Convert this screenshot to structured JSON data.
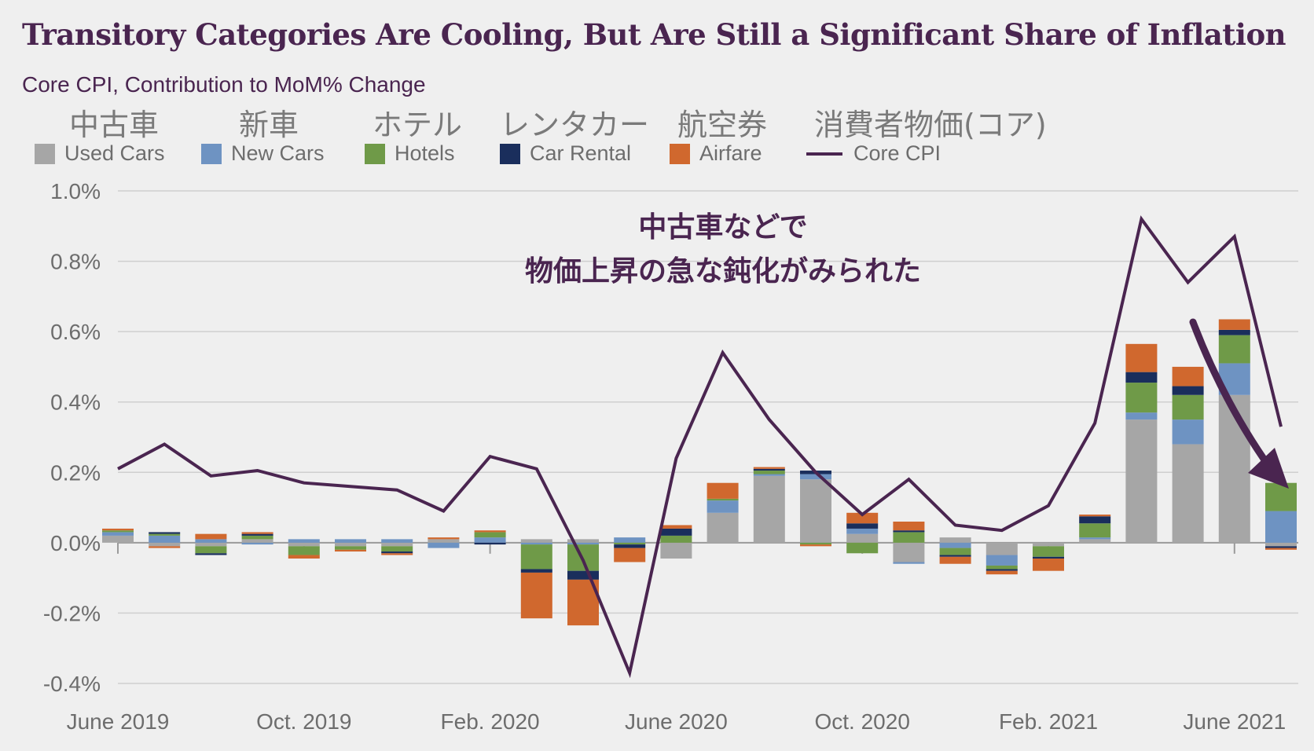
{
  "chart_data": {
    "type": "bar",
    "title": "Transitory Categories Are Cooling, But Are Still a Significant Share of Inflation",
    "subtitle": "Core CPI, Contribution to MoM% Change",
    "stacked": true,
    "ylim": [
      -0.4,
      1.0
    ],
    "y_ticks": [
      "1.0%",
      "0.8%",
      "0.6%",
      "0.4%",
      "0.2%",
      "0.0%",
      "-0.2%",
      "-0.4%"
    ],
    "y_tick_values": [
      1.0,
      0.8,
      0.6,
      0.4,
      0.2,
      0.0,
      -0.2,
      -0.4
    ],
    "x_tick_labels": [
      "June 2019",
      "Oct. 2019",
      "Feb. 2020",
      "June 2020",
      "Oct. 2020",
      "Feb. 2021",
      "June 2021"
    ],
    "x_tick_indices": [
      0,
      4,
      8,
      12,
      16,
      20,
      24
    ],
    "categories": [
      "2019-06",
      "2019-07",
      "2019-08",
      "2019-09",
      "2019-10",
      "2019-11",
      "2019-12",
      "2020-01",
      "2020-02",
      "2020-03",
      "2020-04",
      "2020-05",
      "2020-06",
      "2020-07",
      "2020-08",
      "2020-09",
      "2020-10",
      "2020-11",
      "2020-12",
      "2021-01",
      "2021-02",
      "2021-03",
      "2021-04",
      "2021-05",
      "2021-06",
      "2021-07"
    ],
    "series": [
      {
        "name": "Used Cars",
        "color": "#a6a6a6",
        "values": [
          0.02,
          -0.01,
          -0.01,
          0.01,
          -0.01,
          -0.01,
          -0.01,
          0.01,
          0.0,
          0.01,
          0.01,
          0.0,
          -0.045,
          0.085,
          0.19,
          0.18,
          0.025,
          -0.055,
          0.015,
          -0.035,
          -0.01,
          0.01,
          0.35,
          0.28,
          0.42,
          -0.01
        ]
      },
      {
        "name": "New Cars",
        "color": "#6e93c2",
        "values": [
          0.01,
          0.02,
          0.01,
          -0.005,
          0.01,
          0.01,
          0.01,
          -0.015,
          0.015,
          -0.005,
          -0.005,
          0.015,
          0.0,
          0.035,
          0.005,
          0.015,
          0.015,
          -0.005,
          -0.015,
          -0.03,
          0.0,
          0.005,
          0.02,
          0.07,
          0.09,
          0.09
        ]
      },
      {
        "name": "Hotels",
        "color": "#6f9a48",
        "values": [
          0.005,
          0.005,
          -0.02,
          0.01,
          -0.025,
          -0.01,
          -0.015,
          0.0,
          0.015,
          -0.07,
          -0.075,
          -0.005,
          0.02,
          0.005,
          0.01,
          -0.005,
          -0.03,
          0.03,
          -0.02,
          -0.01,
          -0.03,
          0.04,
          0.085,
          0.07,
          0.08,
          0.08
        ]
      },
      {
        "name": "Car Rental",
        "color": "#1a2e5c",
        "values": [
          0.0,
          0.005,
          -0.005,
          0.005,
          0.0,
          0.0,
          -0.005,
          0.0,
          -0.005,
          -0.01,
          -0.025,
          -0.01,
          0.02,
          0.0,
          0.005,
          0.01,
          0.015,
          0.005,
          -0.005,
          -0.005,
          -0.005,
          0.02,
          0.03,
          0.025,
          0.015,
          -0.005
        ]
      },
      {
        "name": "Airfare",
        "color": "#d0682e",
        "values": [
          0.005,
          -0.005,
          0.015,
          0.005,
          -0.01,
          -0.005,
          -0.005,
          0.005,
          0.005,
          -0.13,
          -0.13,
          -0.04,
          0.01,
          0.045,
          0.005,
          -0.005,
          0.03,
          0.025,
          -0.02,
          -0.01,
          -0.035,
          0.005,
          0.08,
          0.055,
          0.03,
          -0.005
        ]
      }
    ],
    "line_series": {
      "name": "Core CPI",
      "color": "#4a2550",
      "values": [
        0.21,
        0.28,
        0.19,
        0.205,
        0.17,
        0.16,
        0.15,
        0.09,
        0.245,
        0.21,
        -0.05,
        -0.37,
        0.24,
        0.54,
        0.35,
        0.2,
        0.08,
        0.18,
        0.05,
        0.035,
        0.105,
        0.34,
        0.92,
        0.74,
        0.87,
        0.33
      ]
    },
    "legend_placement": "top"
  },
  "legend": [
    {
      "jp": "中古車",
      "label": "Used Cars",
      "color": "#a6a6a6",
      "kind": "box"
    },
    {
      "jp": "新車",
      "label": "New Cars",
      "color": "#6e93c2",
      "kind": "box"
    },
    {
      "jp": "ホテル",
      "label": "Hotels",
      "color": "#6f9a48",
      "kind": "box"
    },
    {
      "jp": "レンタカー",
      "label": "Car Rental",
      "color": "#1a2e5c",
      "kind": "box"
    },
    {
      "jp": "航空券",
      "label": "Airfare",
      "color": "#d0682e",
      "kind": "box"
    },
    {
      "jp": "消費者物価(コア)",
      "label": "Core CPI",
      "color": "#4a2550",
      "kind": "line"
    }
  ],
  "annotation": {
    "line1": "中古車などで",
    "line2": "物価上昇の急な鈍化がみられた",
    "arrow_color": "#4a2550"
  }
}
